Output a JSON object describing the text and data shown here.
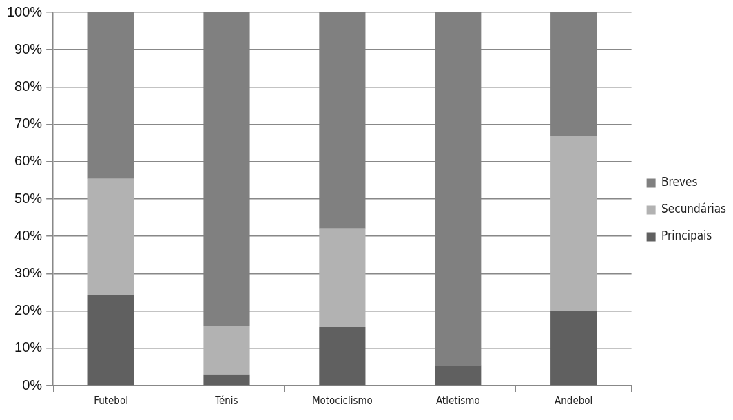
{
  "chart_data": {
    "type": "bar",
    "stacked": true,
    "categories": [
      "Futebol",
      "Ténis",
      "Motociclismo",
      "Atletismo",
      "Andebol"
    ],
    "series": [
      {
        "name": "Principais",
        "color": "#606060",
        "values": [
          24.2,
          3.0,
          15.7,
          5.5,
          20.0
        ]
      },
      {
        "name": "Secundárias",
        "color": "#b2b2b2",
        "values": [
          31.2,
          13.0,
          26.4,
          0,
          46.8
        ]
      },
      {
        "name": "Breves",
        "color": "#808080",
        "values": [
          44.6,
          84.0,
          57.9,
          94.5,
          33.2
        ]
      }
    ],
    "ylim": [
      0,
      100
    ],
    "yticks": [
      {
        "value": 0,
        "label": "0%"
      },
      {
        "value": 10,
        "label": "10%"
      },
      {
        "value": 20,
        "label": "20%"
      },
      {
        "value": 30,
        "label": "30%"
      },
      {
        "value": 40,
        "label": "40%"
      },
      {
        "value": 50,
        "label": "50%"
      },
      {
        "value": 60,
        "label": "60%"
      },
      {
        "value": 70,
        "label": "70%"
      },
      {
        "value": 80,
        "label": "80%"
      },
      {
        "value": 90,
        "label": "90%"
      },
      {
        "value": 100,
        "label": "100%"
      }
    ],
    "grid": "y",
    "legend": "right"
  }
}
